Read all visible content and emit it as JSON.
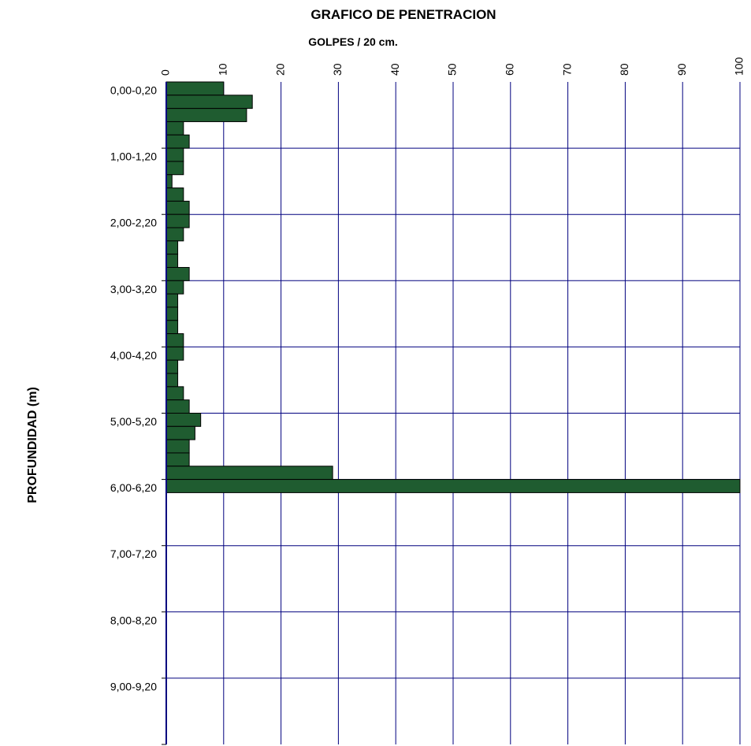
{
  "chart_data": {
    "type": "bar",
    "orientation": "horizontal",
    "title": "GRAFICO DE PENETRACION",
    "xlabel": "GOLPES / 20 cm.",
    "ylabel": "PROFUNDIDAD (m)",
    "xlim": [
      0,
      100
    ],
    "x_ticks": [
      "0",
      "10",
      "20",
      "30",
      "40",
      "50",
      "60",
      "70",
      "80",
      "90",
      "100"
    ],
    "y_tick_labels": [
      "0,00-0,20",
      "1,00-1,20",
      "2,00-2,20",
      "3,00-3,20",
      "4,00-4,20",
      "5,00-5,20",
      "6,00-6,20",
      "7,00-7,20",
      "8,00-8,20",
      "9,00-9,20"
    ],
    "interval_m": 0.2,
    "depth_range_m": [
      0,
      10
    ],
    "values": [
      10,
      15,
      14,
      3,
      4,
      3,
      3,
      1,
      3,
      4,
      4,
      3,
      2,
      2,
      4,
      3,
      2,
      2,
      2,
      3,
      3,
      2,
      2,
      3,
      4,
      6,
      5,
      4,
      4,
      29,
      100
    ],
    "grid": true,
    "bar_color": "#1f5c30",
    "grid_color": "#00007f"
  }
}
